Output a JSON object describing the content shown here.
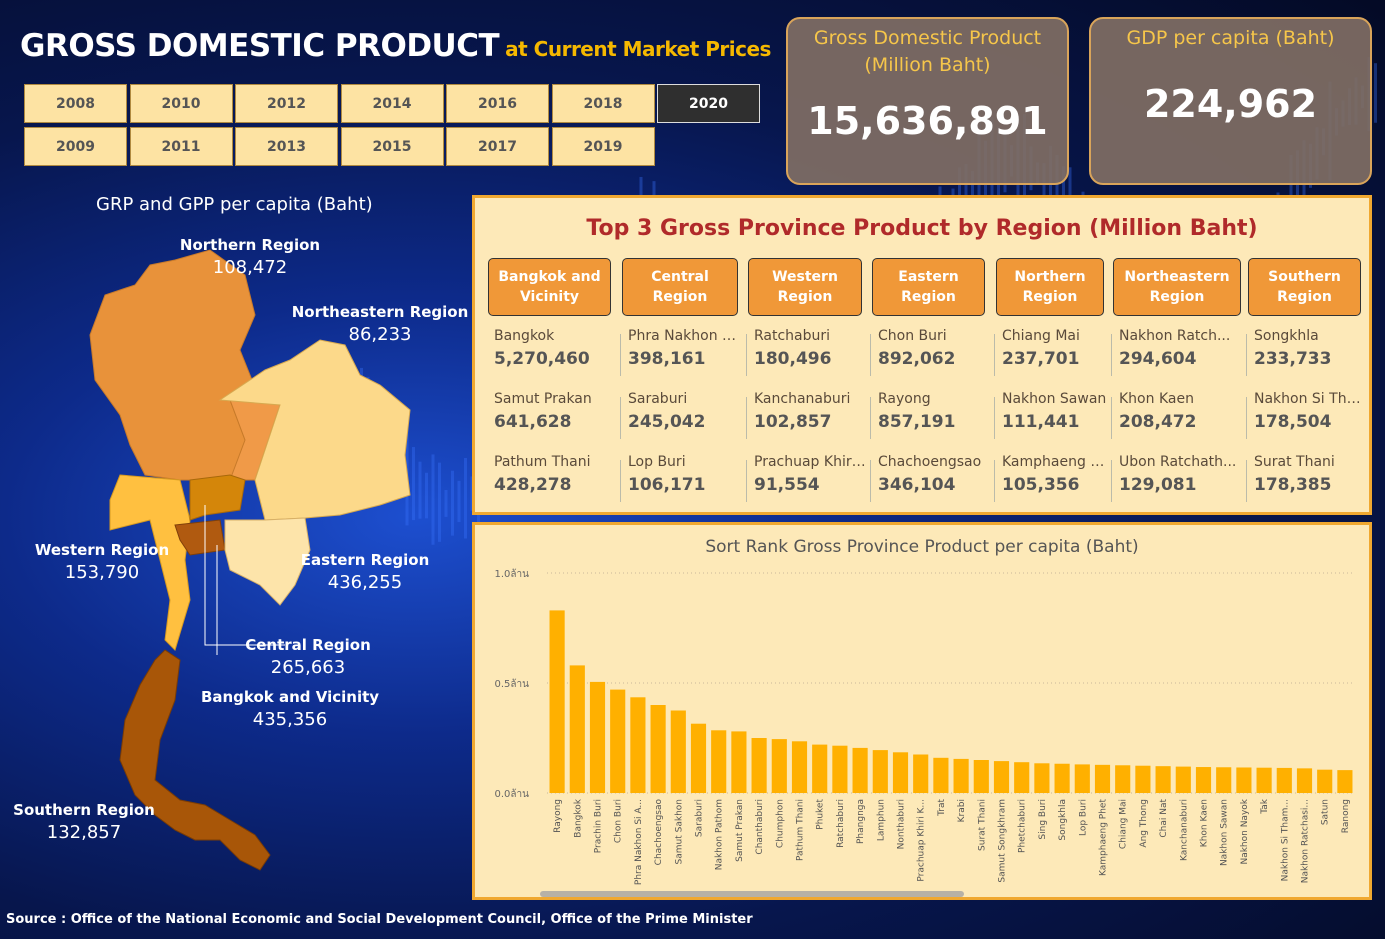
{
  "header": {
    "title": "GROSS DOMESTIC PRODUCT",
    "subtitle": "at Current Market Prices"
  },
  "years": {
    "row1": [
      "2008",
      "2010",
      "2012",
      "2014",
      "2016",
      "2018",
      "2020"
    ],
    "row2": [
      "2009",
      "2011",
      "2013",
      "2015",
      "2017",
      "2019"
    ],
    "selected": "2020"
  },
  "kpi": {
    "gdp_label_line1": "Gross Domestic Product",
    "gdp_label_line2": "(Million Baht)",
    "gdp_value": "15,636,891",
    "percap_label": "GDP per capita (Baht)",
    "percap_value": "224,962"
  },
  "map": {
    "title": "GRP  and  GPP  per capita (Baht)",
    "regions": [
      {
        "name": "Northern Region",
        "value": "108,472",
        "color": "#e8923a"
      },
      {
        "name": "Northeastern Region",
        "value": "86,233",
        "color": "#fcd98a"
      },
      {
        "name": "Western Region",
        "value": "153,790",
        "color": "#ffc040"
      },
      {
        "name": "Eastern Region",
        "value": "436,255",
        "color": "#fde4aa"
      },
      {
        "name": "Central Region",
        "value": "265,663",
        "color": "#d4860a"
      },
      {
        "name": "Bangkok and Vicinity",
        "value": "435,356",
        "color": "#b05a10"
      },
      {
        "name": "Southern Region",
        "value": "132,857",
        "color": "#a85608"
      }
    ]
  },
  "top3": {
    "title": "Top 3 Gross Province Product by Region (Million Baht)",
    "regions": [
      {
        "label_line1": "Bangkok and",
        "label_line2": "Vicinity",
        "items": [
          {
            "name": "Bangkok",
            "value": "5,270,460"
          },
          {
            "name": "Samut Prakan",
            "value": "641,628"
          },
          {
            "name": "Pathum Thani",
            "value": "428,278"
          }
        ]
      },
      {
        "label_line1": "Central",
        "label_line2": "Region",
        "items": [
          {
            "name": "Phra Nakhon Si A...",
            "value": "398,161"
          },
          {
            "name": "Saraburi",
            "value": "245,042"
          },
          {
            "name": "Lop Buri",
            "value": "106,171"
          }
        ]
      },
      {
        "label_line1": "Western",
        "label_line2": "Region",
        "items": [
          {
            "name": "Ratchaburi",
            "value": "180,496"
          },
          {
            "name": "Kanchanaburi",
            "value": "102,857"
          },
          {
            "name": "Prachuap Khiri ...",
            "value": "91,554"
          }
        ]
      },
      {
        "label_line1": "Eastern",
        "label_line2": "Region",
        "items": [
          {
            "name": "Chon Buri",
            "value": "892,062"
          },
          {
            "name": "Rayong",
            "value": "857,191"
          },
          {
            "name": "Chachoengsao",
            "value": "346,104"
          }
        ]
      },
      {
        "label_line1": "Northern",
        "label_line2": "Region",
        "items": [
          {
            "name": "Chiang Mai",
            "value": "237,701"
          },
          {
            "name": "Nakhon Sawan",
            "value": "111,441"
          },
          {
            "name": "Kamphaeng Phet",
            "value": "105,356"
          }
        ]
      },
      {
        "label_line1": "Northeastern",
        "label_line2": "Region",
        "items": [
          {
            "name": "Nakhon Ratch...",
            "value": "294,604"
          },
          {
            "name": "Khon Kaen",
            "value": "208,472"
          },
          {
            "name": "Ubon Ratchath...",
            "value": "129,081"
          }
        ]
      },
      {
        "label_line1": "Southern",
        "label_line2": "Region",
        "items": [
          {
            "name": "Songkhla",
            "value": "233,733"
          },
          {
            "name": "Nakhon Si Tham...",
            "value": "178,504"
          },
          {
            "name": "Surat Thani",
            "value": "178,385"
          }
        ]
      }
    ]
  },
  "chart_data": {
    "type": "bar",
    "title": "Sort Rank Gross Province Product per capita (Baht)",
    "xlabel": "",
    "ylabel": "",
    "ylim": [
      0,
      1000000
    ],
    "yticks": [
      {
        "v": 0,
        "label": "0.0ล้าน"
      },
      {
        "v": 500000,
        "label": "0.5ล้าน"
      },
      {
        "v": 1000000,
        "label": "1.0ล้าน"
      }
    ],
    "bar_color": "#ffb000",
    "grid": true,
    "categories": [
      "Rayong",
      "Bangkok",
      "Prachin Buri",
      "Chon Buri",
      "Phra Nakhon Si A...",
      "Chachoengsao",
      "Samut Sakhon",
      "Saraburi",
      "Nakhon Pathom",
      "Samut Prakan",
      "Chanthaburi",
      "Chumphon",
      "Pathum Thani",
      "Phuket",
      "Ratchaburi",
      "Phangnga",
      "Lamphun",
      "Nonthaburi",
      "Prachuap Khiri K...",
      "Trat",
      "Krabi",
      "Surat Thani",
      "Samut Songkhram",
      "Phetchaburi",
      "Sing Buri",
      "Songkhla",
      "Lop Buri",
      "Kamphaeng Phet",
      "Chiang Mai",
      "Ang Thong",
      "Chai Nat",
      "Kanchanaburi",
      "Khon Kaen",
      "Nakhon Sawan",
      "Nakhon Nayok",
      "Tak",
      "Nakhon Si Tham...",
      "Nakhon Ratchasi...",
      "Satun",
      "Ranong"
    ],
    "values": [
      830000,
      580000,
      505000,
      470000,
      435000,
      400000,
      375000,
      315000,
      285000,
      280000,
      250000,
      245000,
      235000,
      220000,
      215000,
      205000,
      195000,
      185000,
      175000,
      160000,
      155000,
      150000,
      145000,
      140000,
      135000,
      133000,
      130000,
      128000,
      126000,
      124000,
      122000,
      120000,
      118000,
      117000,
      116000,
      115000,
      114000,
      112000,
      106000,
      104000
    ]
  },
  "footer": {
    "source": "Source : Office of the National Economic and Social Development Council, Office of the Prime Minister"
  }
}
